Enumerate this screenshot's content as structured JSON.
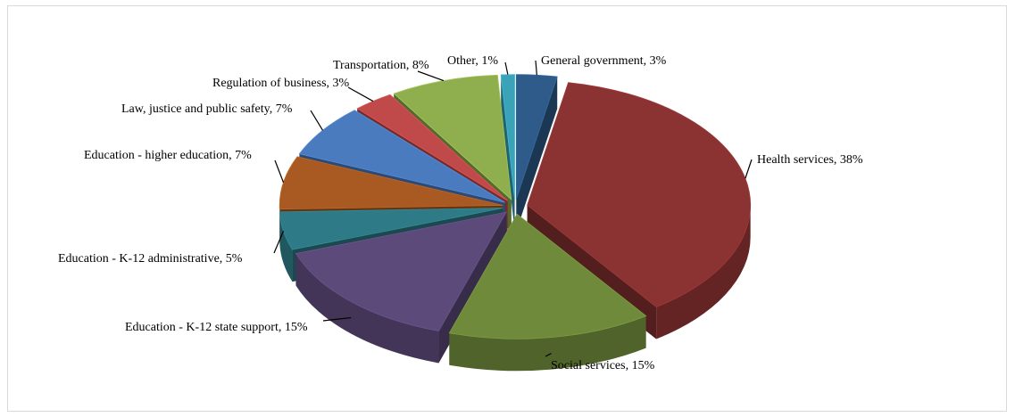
{
  "chart_data": {
    "type": "pie",
    "title": "",
    "slices": [
      {
        "label": "General government, 3%",
        "name": "General government",
        "value": 3,
        "color": "#2e5b8a"
      },
      {
        "label": "Health services, 38%",
        "name": "Health services",
        "value": 38,
        "color": "#8b3232"
      },
      {
        "label": "Social services, 15%",
        "name": "Social services",
        "value": 15,
        "color": "#6e8a3a"
      },
      {
        "label": "Education - K-12 state support, 15%",
        "name": "Education - K-12 state support",
        "value": 15,
        "color": "#5b4a7a"
      },
      {
        "label": "Education - K-12 administrative, 5%",
        "name": "Education - K-12 administrative",
        "value": 5,
        "color": "#2e7a86"
      },
      {
        "label": "Education - higher education, 7%",
        "name": "Education - higher education",
        "value": 7,
        "color": "#a85a22"
      },
      {
        "label": "Law, justice and public safety, 7%",
        "name": "Law, justice and public safety",
        "value": 7,
        "color": "#4a7bbf"
      },
      {
        "label": "Regulation of business, 3%",
        "name": "Regulation of business",
        "value": 3,
        "color": "#c04a4a"
      },
      {
        "label": "Transportation, 8%",
        "name": "Transportation",
        "value": 8,
        "color": "#8fae4e"
      },
      {
        "label": "Other, 1%",
        "name": "Other",
        "value": 1,
        "color": "#3aa3b8"
      }
    ],
    "legend": "none",
    "style": "3d-exploded"
  }
}
